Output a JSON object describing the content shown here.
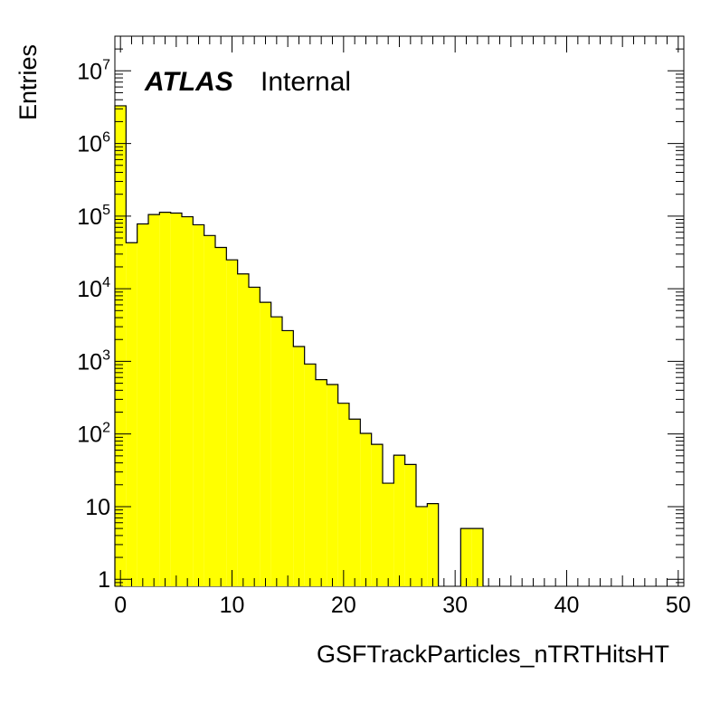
{
  "chart_data": {
    "type": "bar",
    "histogram": true,
    "fill_color": "#ffff00",
    "line_color": "#000000",
    "xlabel": "GSFTrackParticles_nTRTHitsHT",
    "ylabel": "Entries",
    "label_main": "ATLAS",
    "label_sub": "Internal",
    "xlim": [
      -0.5,
      50.5
    ],
    "ylim": [
      0.8,
      30000000
    ],
    "yscale": "log",
    "bin_width": 1,
    "x_ticks": [
      0,
      10,
      20,
      30,
      40,
      50
    ],
    "x_tick_labels": [
      "0",
      "10",
      "20",
      "30",
      "40",
      "50"
    ],
    "y_ticks": [
      {
        "value": 1,
        "base": "1",
        "exp": ""
      },
      {
        "value": 10,
        "base": "10",
        "exp": ""
      },
      {
        "value": 100,
        "base": "10",
        "exp": "2"
      },
      {
        "value": 1000,
        "base": "10",
        "exp": "3"
      },
      {
        "value": 10000,
        "base": "10",
        "exp": "4"
      },
      {
        "value": 100000,
        "base": "10",
        "exp": "5"
      },
      {
        "value": 1000000,
        "base": "10",
        "exp": "6"
      },
      {
        "value": 10000000,
        "base": "10",
        "exp": "7"
      }
    ],
    "bins_center": [
      0,
      1,
      2,
      3,
      4,
      5,
      6,
      7,
      8,
      9,
      10,
      11,
      12,
      13,
      14,
      15,
      16,
      17,
      18,
      19,
      20,
      21,
      22,
      23,
      24,
      25,
      26,
      27,
      28,
      29,
      30,
      31,
      32,
      33,
      34,
      35,
      36,
      37,
      38,
      39,
      40,
      41,
      42,
      43,
      44,
      45,
      46,
      47,
      48,
      49,
      50
    ],
    "values": [
      3300000,
      43000,
      78000,
      105000,
      113000,
      110000,
      98000,
      76000,
      54000,
      37000,
      25000,
      16000,
      10500,
      6500,
      4100,
      2650,
      1600,
      920,
      560,
      480,
      265,
      160,
      102,
      72,
      21,
      51,
      38,
      10,
      11,
      0,
      0,
      5,
      5,
      0,
      0,
      0,
      0,
      0,
      0,
      0,
      0,
      0,
      0,
      0,
      0,
      0,
      0,
      0,
      0,
      0,
      0
    ]
  }
}
